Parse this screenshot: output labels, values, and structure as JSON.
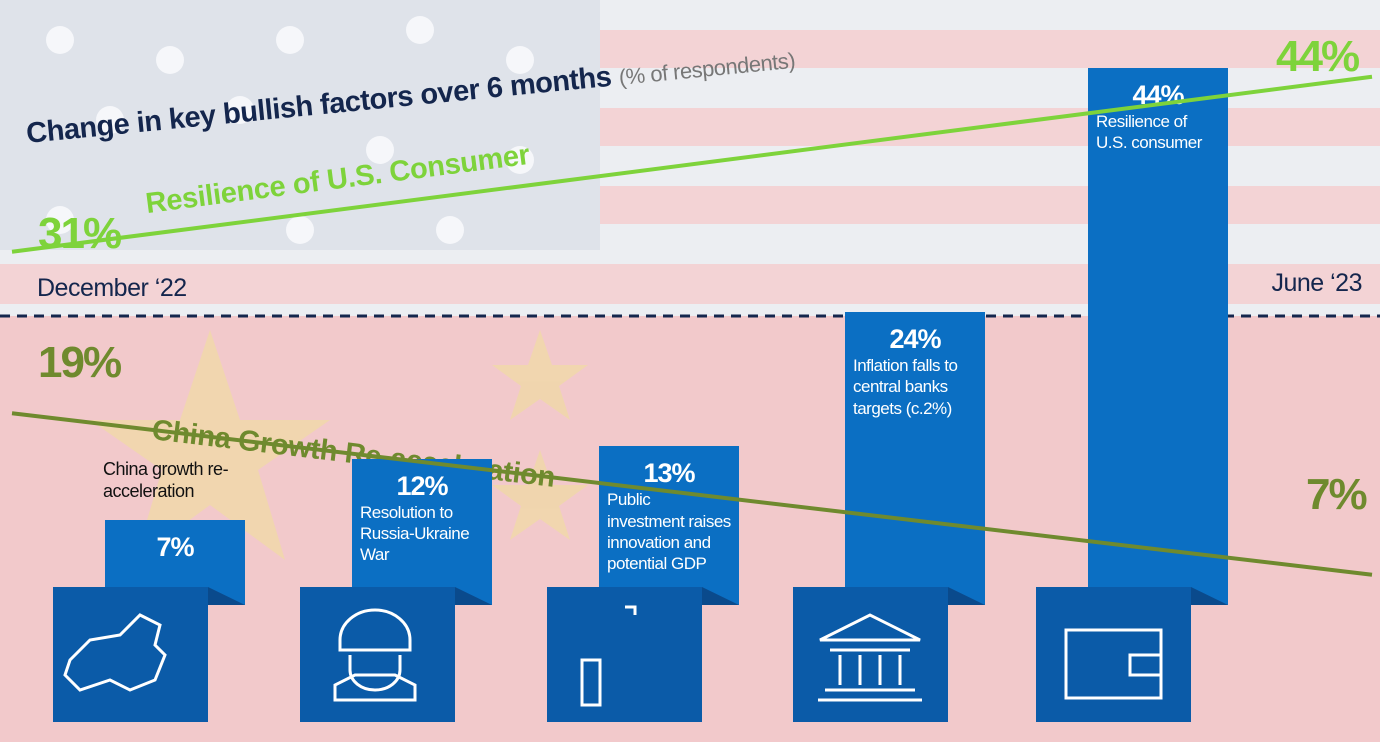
{
  "chart_data": {
    "type": "bar",
    "title": "Change in key bullish factors over 6 months",
    "subtitle": "(% of respondents)",
    "categories": [
      "China growth re-acceleration",
      "Resolution to Russia-Ukraine War",
      "Public investment raises innovation and potential GDP",
      "Inflation falls to central banks targets (c.2%)",
      "Resilience of U.S. consumer"
    ],
    "values": [
      7,
      12,
      13,
      24,
      44
    ],
    "value_labels": [
      "7%",
      "12%",
      "13%",
      "24%",
      "44%"
    ],
    "color": "#0b6fc3",
    "x": [
      "December ‘22",
      "June ‘23"
    ],
    "lines": [
      {
        "name": "Resilience of U.S. Consumer",
        "color": "#7ed33b",
        "values": [
          31,
          44
        ],
        "value_labels": [
          "31%",
          "44%"
        ]
      },
      {
        "name": "China Growth Re-acceleration",
        "color": "#6f8a2e",
        "values": [
          19,
          7
        ],
        "value_labels": [
          "19%",
          "7%"
        ]
      }
    ]
  }
}
